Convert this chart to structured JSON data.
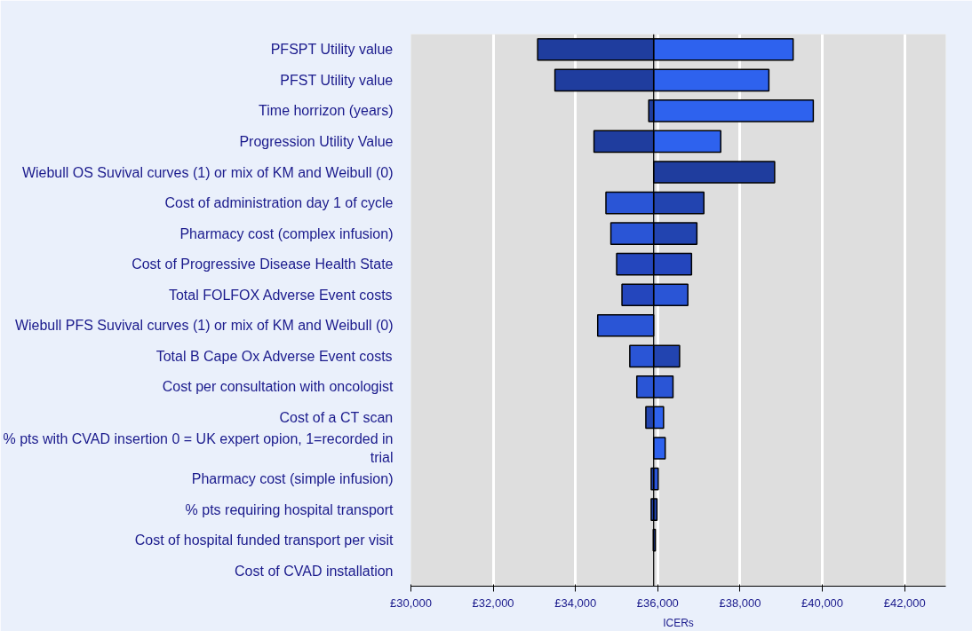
{
  "chart_data": {
    "type": "bar",
    "orientation": "horizontal",
    "xlabel": "ICERs",
    "categories": [
      "PFSPT Utility value",
      "PFST Utility value",
      "Time horrizon (years)",
      "Progression Utility Value",
      "Wiebull OS Suvival curves (1) or mix of KM and Weibull (0)",
      "Cost of administration day 1 of cycle",
      "Pharmacy cost (complex infusion)",
      "Cost of Progressive Disease Health State",
      "Total FOLFOX Adverse Event costs",
      "Wiebull PFS Suvival curves (1) or mix of KM and Weibull (0)",
      "Total B Cape Ox Adverse Event costs",
      "Cost per consultation with oncologist",
      "Cost of a CT scan",
      "% pts with CVAD insertion 0 = UK expert opion, 1=recorded in trial",
      "Pharmacy cost (simple infusion)",
      "% pts requiring hospital transport",
      "Cost of hospital funded transport per visit",
      "Cost of CVAD installation"
    ],
    "series": [
      {
        "base": [
          33080,
          33500,
          35780,
          34450,
          null,
          34740,
          34860,
          35000,
          35130,
          34540,
          35320,
          35490,
          35710,
          null,
          35840,
          35840,
          null,
          null
        ],
        "values": [
          2820,
          2400,
          120,
          1450,
          null,
          1160,
          1040,
          900,
          770,
          1360,
          580,
          410,
          190,
          null,
          60,
          60,
          null,
          null
        ],
        "colors": [
          "#1f3d9e",
          "#1f3d9e",
          "#1f3d9e",
          "#1f3d9e",
          "#1f3d9e",
          "#2a55d6",
          "#2a55d6",
          "#2446bd",
          "#2446bd",
          "#2a55d6",
          "#2a55d6",
          "#2a55d6",
          "#2244b0",
          "#2a55d6",
          "#2244b0",
          "#2244b0",
          "#2244b0",
          "#2244b0"
        ]
      },
      {
        "base": [
          35900,
          35900,
          35900,
          35900,
          35900,
          35900,
          35900,
          35900,
          35900,
          null,
          35900,
          35900,
          35900,
          35900,
          35900,
          35900,
          35890,
          null
        ],
        "values": [
          3390,
          2800,
          3880,
          1630,
          2940,
          1220,
          1050,
          920,
          830,
          null,
          630,
          470,
          240,
          280,
          110,
          80,
          50,
          null
        ],
        "colors": [
          "#2e62ee",
          "#2e62ee",
          "#2e62ee",
          "#2e62ee",
          "#1f3d9e",
          "#2244b0",
          "#2244b0",
          "#2446bd",
          "#2a55d6",
          "#2a55d6",
          "#2244b0",
          "#2a55d6",
          "#2e62ee",
          "#2e62ee",
          "#2a55d6",
          "#2244b0",
          "#2244b0",
          "#2244b0"
        ]
      }
    ],
    "xlim": [
      30000,
      43000
    ],
    "xticks": [
      {
        "value": 30000,
        "label": "£30,000"
      },
      {
        "value": 32000,
        "label": "£32,000"
      },
      {
        "value": 34000,
        "label": "£34,000"
      },
      {
        "value": 36000,
        "label": "£36,000"
      },
      {
        "value": 38000,
        "label": "£38,000"
      },
      {
        "value": 40000,
        "label": "£40,000"
      },
      {
        "value": 42000,
        "label": "£42,000"
      }
    ],
    "ref_lines": [
      {
        "axis": "x",
        "value": 35900,
        "color": "#000000"
      }
    ],
    "grid": "x"
  }
}
